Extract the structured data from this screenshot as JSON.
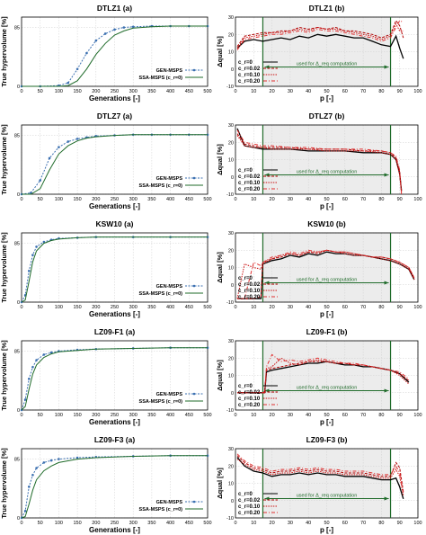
{
  "colors": {
    "gen": "#3a6fb0",
    "ssa": "#1f6b2a",
    "c0": "#000000",
    "c002": "#b00000",
    "c010": "#cc1010",
    "c020": "#e03030",
    "green_line": "#1f6b2a",
    "shade": "#ececec"
  },
  "left_common": {
    "ylabel": "True hypervolume [%]",
    "xlabel": "Generations [-]",
    "xticks": [
      "0",
      "50",
      "100",
      "150",
      "200",
      "250",
      "300",
      "350",
      "400",
      "450",
      "500"
    ],
    "yticks": [
      "0",
      "85"
    ],
    "legend": [
      "GEN-MSPS",
      "SSA-MSPS (c_r=0)"
    ]
  },
  "right_common": {
    "ylabel": "Δqual [%]",
    "xlabel": "p [-]",
    "xticks": [
      "0",
      "10",
      "20",
      "30",
      "40",
      "50",
      "60",
      "70",
      "80",
      "90",
      "100"
    ],
    "yticks": [
      "-10",
      "0",
      "10",
      "20",
      "30"
    ],
    "legend": [
      "c_r=0",
      "c_r=0.02",
      "c_r=0.10",
      "c_r=0.20"
    ],
    "annotation": "used for Δ_req computation"
  },
  "chart_data": [
    {
      "type": "line",
      "title": "DTLZ1 (a)",
      "xlim": [
        0,
        500
      ],
      "ylim": [
        0,
        100
      ],
      "x": [
        0,
        50,
        100,
        125,
        150,
        175,
        200,
        225,
        250,
        275,
        300,
        350,
        400,
        450,
        500
      ],
      "series": [
        {
          "name": "GEN-MSPS",
          "values": [
            0,
            0,
            1,
            5,
            25,
            48,
            66,
            76,
            82,
            85,
            86,
            87,
            87,
            87,
            87
          ]
        },
        {
          "name": "SSA-MSPS (c_r=0)",
          "values": [
            0,
            0,
            0,
            1,
            8,
            25,
            46,
            62,
            74,
            80,
            84,
            86,
            87,
            87,
            87
          ]
        }
      ]
    },
    {
      "type": "line",
      "title": "DTLZ1 (b)",
      "xlim": [
        0,
        100
      ],
      "ylim": [
        -10,
        30
      ],
      "x": [
        1,
        5,
        10,
        15,
        20,
        25,
        30,
        35,
        40,
        45,
        50,
        55,
        60,
        65,
        70,
        75,
        80,
        85,
        88,
        90,
        92
      ],
      "series": [
        {
          "name": "c_r=0",
          "values": [
            12,
            16,
            17,
            16,
            17,
            18,
            17,
            19,
            18,
            20,
            19,
            20,
            19,
            18,
            18,
            16,
            14,
            13,
            19,
            12,
            6
          ]
        },
        {
          "name": "c_r=0.02",
          "values": [
            13,
            19,
            20,
            21,
            21,
            22,
            22,
            24,
            23,
            24,
            23,
            24,
            22,
            22,
            21,
            20,
            18,
            20,
            28,
            25,
            18
          ]
        },
        {
          "name": "c_r=0.10",
          "values": [
            12,
            18,
            19,
            20,
            21,
            21,
            22,
            23,
            22,
            24,
            23,
            23,
            22,
            21,
            20,
            19,
            17,
            19,
            26,
            22,
            22
          ]
        },
        {
          "name": "c_r=0.20",
          "values": [
            11,
            17,
            18,
            19,
            20,
            20,
            21,
            22,
            21,
            23,
            22,
            22,
            21,
            20,
            19,
            18,
            16,
            18,
            24,
            28,
            27
          ]
        }
      ]
    },
    {
      "type": "line",
      "title": "DTLZ7 (a)",
      "xlim": [
        0,
        500
      ],
      "ylim": [
        0,
        100
      ],
      "x": [
        0,
        25,
        50,
        75,
        100,
        125,
        150,
        175,
        200,
        250,
        300,
        350,
        400,
        450,
        500
      ],
      "series": [
        {
          "name": "GEN-MSPS",
          "values": [
            0,
            2,
            20,
            52,
            68,
            76,
            80,
            82,
            84,
            85,
            86,
            86,
            86,
            86,
            86
          ]
        },
        {
          "name": "SSA-MSPS (c_r=0)",
          "values": [
            0,
            0,
            8,
            35,
            58,
            70,
            77,
            81,
            83,
            85,
            86,
            86,
            86,
            86,
            86
          ]
        }
      ]
    },
    {
      "type": "line",
      "title": "DTLZ7 (b)",
      "xlim": [
        0,
        100
      ],
      "ylim": [
        -10,
        30
      ],
      "x": [
        1,
        5,
        10,
        15,
        20,
        30,
        40,
        50,
        60,
        70,
        80,
        85,
        88,
        90,
        91
      ],
      "series": [
        {
          "name": "c_r=0",
          "values": [
            28,
            18,
            17,
            16,
            16,
            16,
            15,
            15,
            15,
            14,
            14,
            13,
            10,
            2,
            -8
          ]
        },
        {
          "name": "c_r=0.02",
          "values": [
            25,
            19,
            18,
            17,
            17,
            17,
            16,
            16,
            16,
            15,
            15,
            14,
            11,
            3,
            -9
          ]
        },
        {
          "name": "c_r=0.10",
          "values": [
            24,
            18,
            17,
            17,
            16,
            16,
            16,
            15,
            15,
            15,
            14,
            13,
            10,
            1,
            -9
          ]
        },
        {
          "name": "c_r=0.20",
          "values": [
            27,
            20,
            19,
            18,
            18,
            17,
            17,
            16,
            16,
            16,
            15,
            14,
            12,
            4,
            -10
          ]
        }
      ]
    },
    {
      "type": "line",
      "title": "KSW10 (a)",
      "xlim": [
        0,
        500
      ],
      "ylim": [
        0,
        100
      ],
      "x": [
        0,
        10,
        20,
        30,
        40,
        60,
        80,
        100,
        150,
        200,
        300,
        400,
        500
      ],
      "series": [
        {
          "name": "GEN-MSPS",
          "values": [
            0,
            10,
            45,
            68,
            80,
            87,
            90,
            92,
            93,
            94,
            94,
            94,
            94
          ]
        },
        {
          "name": "SSA-MSPS (c_r=0)",
          "values": [
            0,
            3,
            30,
            58,
            74,
            85,
            89,
            91,
            93,
            94,
            94,
            94,
            94
          ]
        }
      ]
    },
    {
      "type": "line",
      "title": "KSW10 (b)",
      "xlim": [
        0,
        100
      ],
      "ylim": [
        -10,
        30
      ],
      "x": [
        1,
        5,
        10,
        14,
        15,
        20,
        25,
        30,
        35,
        40,
        45,
        50,
        55,
        60,
        65,
        70,
        75,
        80,
        85,
        90,
        95,
        98
      ],
      "series": [
        {
          "name": "c_r=0",
          "values": [
            -8,
            -8,
            -8,
            -8,
            12,
            14,
            15,
            17,
            16,
            18,
            17,
            19,
            18,
            18,
            17,
            17,
            16,
            15,
            14,
            12,
            9,
            3
          ]
        },
        {
          "name": "c_r=0.02",
          "values": [
            -8,
            -8,
            -8,
            -7,
            13,
            15,
            16,
            18,
            17,
            19,
            18,
            20,
            19,
            19,
            18,
            17,
            16,
            16,
            15,
            13,
            10,
            4
          ]
        },
        {
          "name": "c_r=0.10",
          "values": [
            -8,
            12,
            10,
            9,
            12,
            15,
            17,
            18,
            17,
            19,
            19,
            20,
            19,
            18,
            17,
            17,
            16,
            15,
            14,
            12,
            9,
            3
          ]
        },
        {
          "name": "c_r=0.20",
          "values": [
            -8,
            -8,
            13,
            11,
            13,
            16,
            17,
            19,
            18,
            20,
            19,
            20,
            19,
            19,
            18,
            17,
            16,
            16,
            15,
            13,
            10,
            4
          ]
        }
      ]
    },
    {
      "type": "line",
      "title": "LZ09-F1 (a)",
      "xlim": [
        0,
        500
      ],
      "ylim": [
        0,
        100
      ],
      "x": [
        0,
        10,
        20,
        30,
        40,
        60,
        80,
        100,
        150,
        200,
        300,
        400,
        500
      ],
      "series": [
        {
          "name": "GEN-MSPS",
          "values": [
            0,
            15,
            45,
            62,
            72,
            80,
            83,
            85,
            87,
            88,
            89,
            90,
            90
          ]
        },
        {
          "name": "SSA-MSPS (c_r=0)",
          "values": [
            0,
            5,
            30,
            52,
            65,
            76,
            81,
            84,
            86,
            88,
            89,
            90,
            90
          ]
        }
      ]
    },
    {
      "type": "line",
      "title": "LZ09-F1 (b)",
      "xlim": [
        0,
        100
      ],
      "ylim": [
        -10,
        30
      ],
      "x": [
        1,
        10,
        16,
        17,
        20,
        25,
        30,
        35,
        40,
        45,
        50,
        55,
        60,
        65,
        70,
        75,
        80,
        85,
        90,
        95
      ],
      "series": [
        {
          "name": "c_r=0",
          "values": [
            0,
            0,
            0,
            12,
            13,
            14,
            15,
            16,
            17,
            17,
            18,
            17,
            16,
            16,
            15,
            15,
            14,
            13,
            11,
            6
          ]
        },
        {
          "name": "c_r=0.02",
          "values": [
            0,
            0,
            0,
            13,
            14,
            15,
            16,
            17,
            18,
            18,
            18,
            17,
            17,
            16,
            16,
            15,
            14,
            13,
            11,
            7
          ]
        },
        {
          "name": "c_r=0.10",
          "values": [
            0,
            0,
            0,
            14,
            15,
            20,
            17,
            16,
            18,
            19,
            18,
            17,
            17,
            16,
            16,
            15,
            14,
            13,
            10,
            5
          ]
        },
        {
          "name": "c_r=0.20",
          "values": [
            0,
            0,
            0,
            15,
            22,
            18,
            19,
            18,
            19,
            20,
            19,
            18,
            17,
            17,
            16,
            15,
            14,
            13,
            12,
            8
          ]
        }
      ]
    },
    {
      "type": "line",
      "title": "LZ09-F3 (a)",
      "xlim": [
        0,
        500
      ],
      "ylim": [
        0,
        100
      ],
      "x": [
        0,
        10,
        20,
        30,
        40,
        60,
        80,
        100,
        150,
        200,
        300,
        400,
        500
      ],
      "series": [
        {
          "name": "GEN-MSPS",
          "values": [
            0,
            10,
            45,
            62,
            72,
            80,
            83,
            85,
            87,
            88,
            89,
            90,
            90
          ]
        },
        {
          "name": "SSA-MSPS (c_r=0)",
          "values": [
            0,
            2,
            20,
            40,
            55,
            68,
            75,
            80,
            85,
            87,
            89,
            90,
            90
          ]
        }
      ]
    },
    {
      "type": "line",
      "title": "LZ09-F3 (b)",
      "xlim": [
        0,
        100
      ],
      "ylim": [
        -10,
        30
      ],
      "x": [
        1,
        5,
        10,
        15,
        20,
        25,
        30,
        35,
        40,
        45,
        50,
        55,
        60,
        65,
        70,
        75,
        80,
        85,
        88,
        90,
        92
      ],
      "series": [
        {
          "name": "c_r=0",
          "values": [
            25,
            20,
            17,
            16,
            14,
            15,
            15,
            16,
            15,
            16,
            15,
            15,
            14,
            14,
            14,
            13,
            12,
            12,
            13,
            8,
            1
          ]
        },
        {
          "name": "c_r=0.02",
          "values": [
            26,
            22,
            19,
            18,
            16,
            17,
            17,
            18,
            17,
            18,
            17,
            17,
            16,
            16,
            16,
            15,
            14,
            14,
            22,
            19,
            5
          ]
        },
        {
          "name": "c_r=0.10",
          "values": [
            24,
            21,
            18,
            17,
            15,
            16,
            16,
            17,
            16,
            17,
            16,
            16,
            15,
            15,
            15,
            14,
            13,
            13,
            18,
            14,
            3
          ]
        },
        {
          "name": "c_r=0.20",
          "values": [
            27,
            23,
            20,
            19,
            17,
            18,
            18,
            19,
            18,
            19,
            18,
            18,
            17,
            17,
            17,
            16,
            15,
            15,
            20,
            16,
            4
          ]
        }
      ]
    }
  ]
}
